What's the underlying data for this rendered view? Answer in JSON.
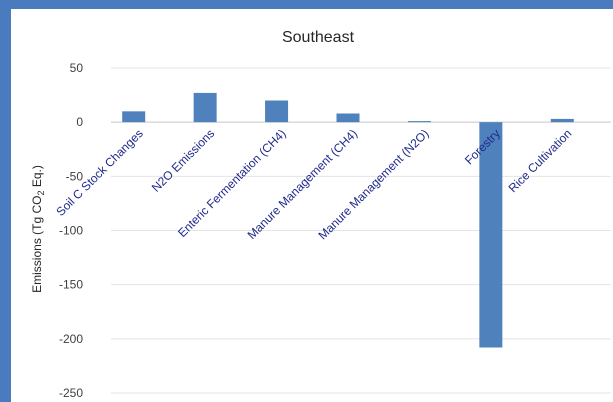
{
  "chart_data": {
    "type": "bar",
    "title": "Southeast",
    "ylabel": "Emissions (Tg CO2 Eq.)",
    "ylabel_main": "Emissions (Tg CO",
    "ylabel_sub": "2",
    "ylabel_tail": " Eq.)",
    "ylim": [
      -250,
      50
    ],
    "yticks": [
      50,
      0,
      -50,
      -100,
      -150,
      -200,
      -250
    ],
    "grid": true,
    "bar_color": "#4f81bd",
    "categories": [
      "Soil C Stock Changes",
      "N2O Emissions",
      "Enteric Fermentation (CH4)",
      "Manure Management (CH4)",
      "Manure Management (N2O)",
      "Forestry",
      "Rice Cultivation"
    ],
    "values": [
      10,
      27,
      20,
      8,
      1,
      -208,
      3
    ]
  }
}
